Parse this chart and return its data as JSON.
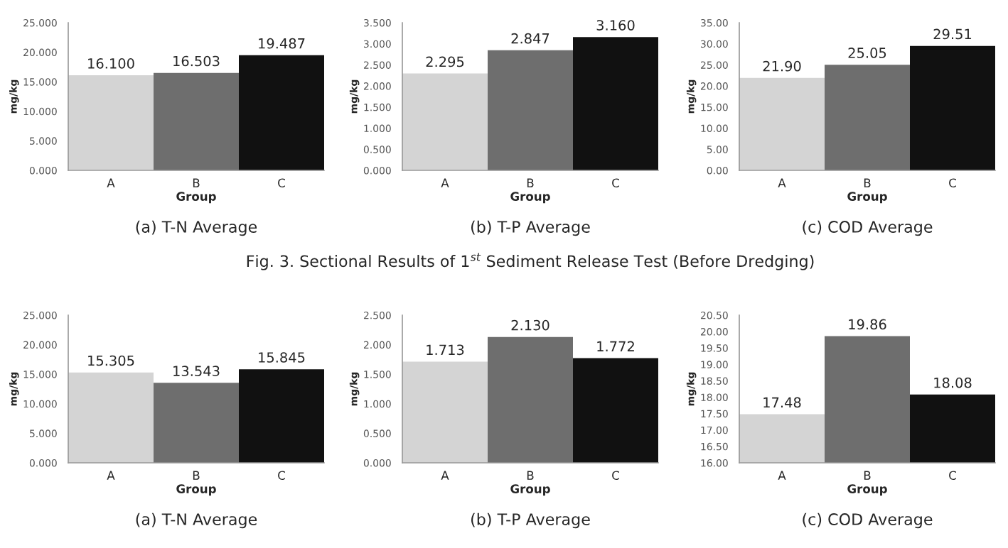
{
  "chart_data": [
    {
      "type": "bar",
      "title": "(a) T-N Average",
      "xlabel": "Group",
      "ylabel": "mg/kg",
      "categories": [
        "A",
        "B",
        "C"
      ],
      "values": [
        16.1,
        16.503,
        19.487
      ],
      "value_labels": [
        "16.100",
        "16.503",
        "19.487"
      ],
      "colors": [
        "#d4d4d4",
        "#6e6e6e",
        "#111111"
      ],
      "ylim": [
        0,
        25
      ],
      "yticks": [
        {
          "value": 0,
          "label": "0.000"
        },
        {
          "value": 5,
          "label": "5.000"
        },
        {
          "value": 10,
          "label": "10.000"
        },
        {
          "value": 15,
          "label": "15.000"
        },
        {
          "value": 20,
          "label": "20.000"
        },
        {
          "value": 25,
          "label": "25.000"
        }
      ],
      "grid": false,
      "legend": false
    },
    {
      "type": "bar",
      "title": "(b) T-P Average",
      "xlabel": "Group",
      "ylabel": "mg/kg",
      "categories": [
        "A",
        "B",
        "C"
      ],
      "values": [
        2.295,
        2.847,
        3.16
      ],
      "value_labels": [
        "2.295",
        "2.847",
        "3.160"
      ],
      "colors": [
        "#d4d4d4",
        "#6e6e6e",
        "#111111"
      ],
      "ylim": [
        0,
        3.5
      ],
      "yticks": [
        {
          "value": 0,
          "label": "0.000"
        },
        {
          "value": 0.5,
          "label": "0.500"
        },
        {
          "value": 1,
          "label": "1.000"
        },
        {
          "value": 1.5,
          "label": "1.500"
        },
        {
          "value": 2,
          "label": "2.000"
        },
        {
          "value": 2.5,
          "label": "2.500"
        },
        {
          "value": 3,
          "label": "3.000"
        },
        {
          "value": 3.5,
          "label": "3.500"
        }
      ],
      "grid": false,
      "legend": false,
      "annotations": [
        "Fig. 3. Sectional Results of 1$^{st}$ Sediment Release Test (Before Dredging)"
      ]
    },
    {
      "type": "bar",
      "title": "(c) COD Average",
      "xlabel": "Group",
      "ylabel": "mg/kg",
      "categories": [
        "A",
        "B",
        "C"
      ],
      "values": [
        21.9,
        25.05,
        29.51
      ],
      "value_labels": [
        "21.90",
        "25.05",
        "29.51"
      ],
      "colors": [
        "#d4d4d4",
        "#6e6e6e",
        "#111111"
      ],
      "ylim": [
        0,
        35
      ],
      "yticks": [
        {
          "value": 0,
          "label": "0.00"
        },
        {
          "value": 5,
          "label": "5.00"
        },
        {
          "value": 10,
          "label": "10.00"
        },
        {
          "value": 15,
          "label": "15.00"
        },
        {
          "value": 20,
          "label": "20.00"
        },
        {
          "value": 25,
          "label": "25.00"
        },
        {
          "value": 30,
          "label": "30.00"
        },
        {
          "value": 35,
          "label": "35.00"
        }
      ],
      "grid": false,
      "legend": false
    },
    {
      "type": "bar",
      "title": "(a) T-N Average",
      "xlabel": "Group",
      "ylabel": "mg/kg",
      "categories": [
        "A",
        "B",
        "C"
      ],
      "values": [
        15.305,
        13.543,
        15.845
      ],
      "value_labels": [
        "15.305",
        "13.543",
        "15.845"
      ],
      "colors": [
        "#d4d4d4",
        "#6e6e6e",
        "#111111"
      ],
      "ylim": [
        0,
        25
      ],
      "yticks": [
        {
          "value": 0,
          "label": "0.000"
        },
        {
          "value": 5,
          "label": "5.000"
        },
        {
          "value": 10,
          "label": "10.000"
        },
        {
          "value": 15,
          "label": "15.000"
        },
        {
          "value": 20,
          "label": "20.000"
        },
        {
          "value": 25,
          "label": "25.000"
        }
      ],
      "grid": false,
      "legend": false
    },
    {
      "type": "bar",
      "title": "(b) T-P Average",
      "xlabel": "Group",
      "ylabel": "mg/kg",
      "categories": [
        "A",
        "B",
        "C"
      ],
      "values": [
        1.713,
        2.13,
        1.772
      ],
      "value_labels": [
        "1.713",
        "2.130",
        "1.772"
      ],
      "colors": [
        "#d4d4d4",
        "#6e6e6e",
        "#111111"
      ],
      "ylim": [
        0,
        2.5
      ],
      "yticks": [
        {
          "value": 0,
          "label": "0.000"
        },
        {
          "value": 0.5,
          "label": "0.500"
        },
        {
          "value": 1,
          "label": "1.000"
        },
        {
          "value": 1.5,
          "label": "1.500"
        },
        {
          "value": 2,
          "label": "2.000"
        },
        {
          "value": 2.5,
          "label": "2.500"
        }
      ],
      "grid": false,
      "legend": false
    },
    {
      "type": "bar",
      "title": "(c) COD Average",
      "xlabel": "Group",
      "ylabel": "mg/kg",
      "categories": [
        "A",
        "B",
        "C"
      ],
      "values": [
        17.48,
        19.86,
        18.08
      ],
      "value_labels": [
        "17.48",
        "19.86",
        "18.08"
      ],
      "colors": [
        "#d4d4d4",
        "#6e6e6e",
        "#111111"
      ],
      "ylim": [
        16,
        20.5
      ],
      "yticks": [
        {
          "value": 16,
          "label": "16.00"
        },
        {
          "value": 16.5,
          "label": "16.50"
        },
        {
          "value": 17,
          "label": "17.00"
        },
        {
          "value": 17.5,
          "label": "17.50"
        },
        {
          "value": 18,
          "label": "18.00"
        },
        {
          "value": 18.5,
          "label": "18.50"
        },
        {
          "value": 19,
          "label": "19.00"
        },
        {
          "value": 19.5,
          "label": "19.50"
        },
        {
          "value": 20,
          "label": "20.00"
        },
        {
          "value": 20.5,
          "label": "20.50"
        }
      ],
      "grid": false,
      "legend": false
    }
  ]
}
